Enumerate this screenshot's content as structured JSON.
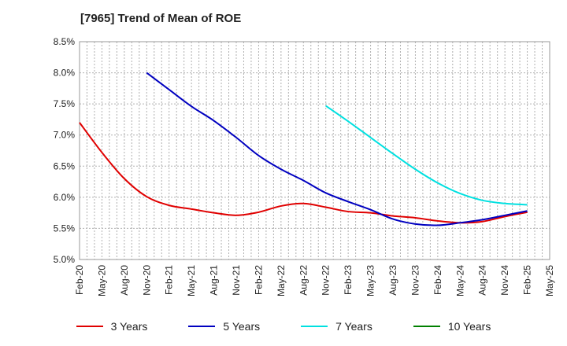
{
  "chart_data": {
    "type": "line",
    "title": "[7965]  Trend of Mean of ROE",
    "x_tick_labels": [
      "Feb-20",
      "May-20",
      "Aug-20",
      "Nov-20",
      "Feb-21",
      "May-21",
      "Aug-21",
      "Nov-21",
      "Feb-22",
      "May-22",
      "Aug-22",
      "Nov-22",
      "Feb-23",
      "May-23",
      "Aug-23",
      "Nov-23",
      "Feb-24",
      "May-24",
      "Aug-24",
      "Nov-24",
      "Feb-25",
      "May-25"
    ],
    "y_tick_labels": [
      "5.0%",
      "5.5%",
      "6.0%",
      "6.5%",
      "7.0%",
      "7.5%",
      "8.0%",
      "8.5%"
    ],
    "ylim": [
      5.0,
      8.5
    ],
    "grid": true,
    "legend_position": "bottom",
    "series": [
      {
        "name": "3 Years",
        "color": "#e00000",
        "x": [
          "Feb-20",
          "May-20",
          "Aug-20",
          "Nov-20",
          "Feb-21",
          "May-21",
          "Aug-21",
          "Nov-21",
          "Feb-22",
          "May-22",
          "Aug-22",
          "Nov-22",
          "Feb-23",
          "May-23",
          "Aug-23",
          "Nov-23",
          "Feb-24",
          "May-24",
          "Aug-24",
          "Nov-24",
          "Feb-25"
        ],
        "values": [
          7.2,
          6.72,
          6.3,
          6.01,
          5.87,
          5.81,
          5.75,
          5.71,
          5.76,
          5.86,
          5.9,
          5.84,
          5.77,
          5.75,
          5.7,
          5.67,
          5.62,
          5.59,
          5.61,
          5.69,
          5.76
        ]
      },
      {
        "name": "5 Years",
        "color": "#0000c0",
        "x": [
          "Nov-20",
          "Feb-21",
          "May-21",
          "Aug-21",
          "Nov-21",
          "Feb-22",
          "May-22",
          "Aug-22",
          "Nov-22",
          "Feb-23",
          "May-23",
          "Aug-23",
          "Nov-23",
          "Feb-24",
          "May-24",
          "Aug-24",
          "Nov-24",
          "Feb-25"
        ],
        "values": [
          8.0,
          7.73,
          7.46,
          7.23,
          6.96,
          6.67,
          6.45,
          6.27,
          6.07,
          5.93,
          5.8,
          5.65,
          5.57,
          5.55,
          5.59,
          5.64,
          5.71,
          5.78
        ]
      },
      {
        "name": "7 Years",
        "color": "#00e0e0",
        "x": [
          "Nov-22",
          "Feb-23",
          "May-23",
          "Aug-23",
          "Nov-23",
          "Feb-24",
          "May-24",
          "Aug-24",
          "Nov-24",
          "Feb-25"
        ],
        "values": [
          7.47,
          7.22,
          6.96,
          6.7,
          6.45,
          6.23,
          6.06,
          5.95,
          5.9,
          5.88
        ]
      },
      {
        "name": "10 Years",
        "color": "#008000",
        "x": [],
        "values": []
      }
    ]
  }
}
